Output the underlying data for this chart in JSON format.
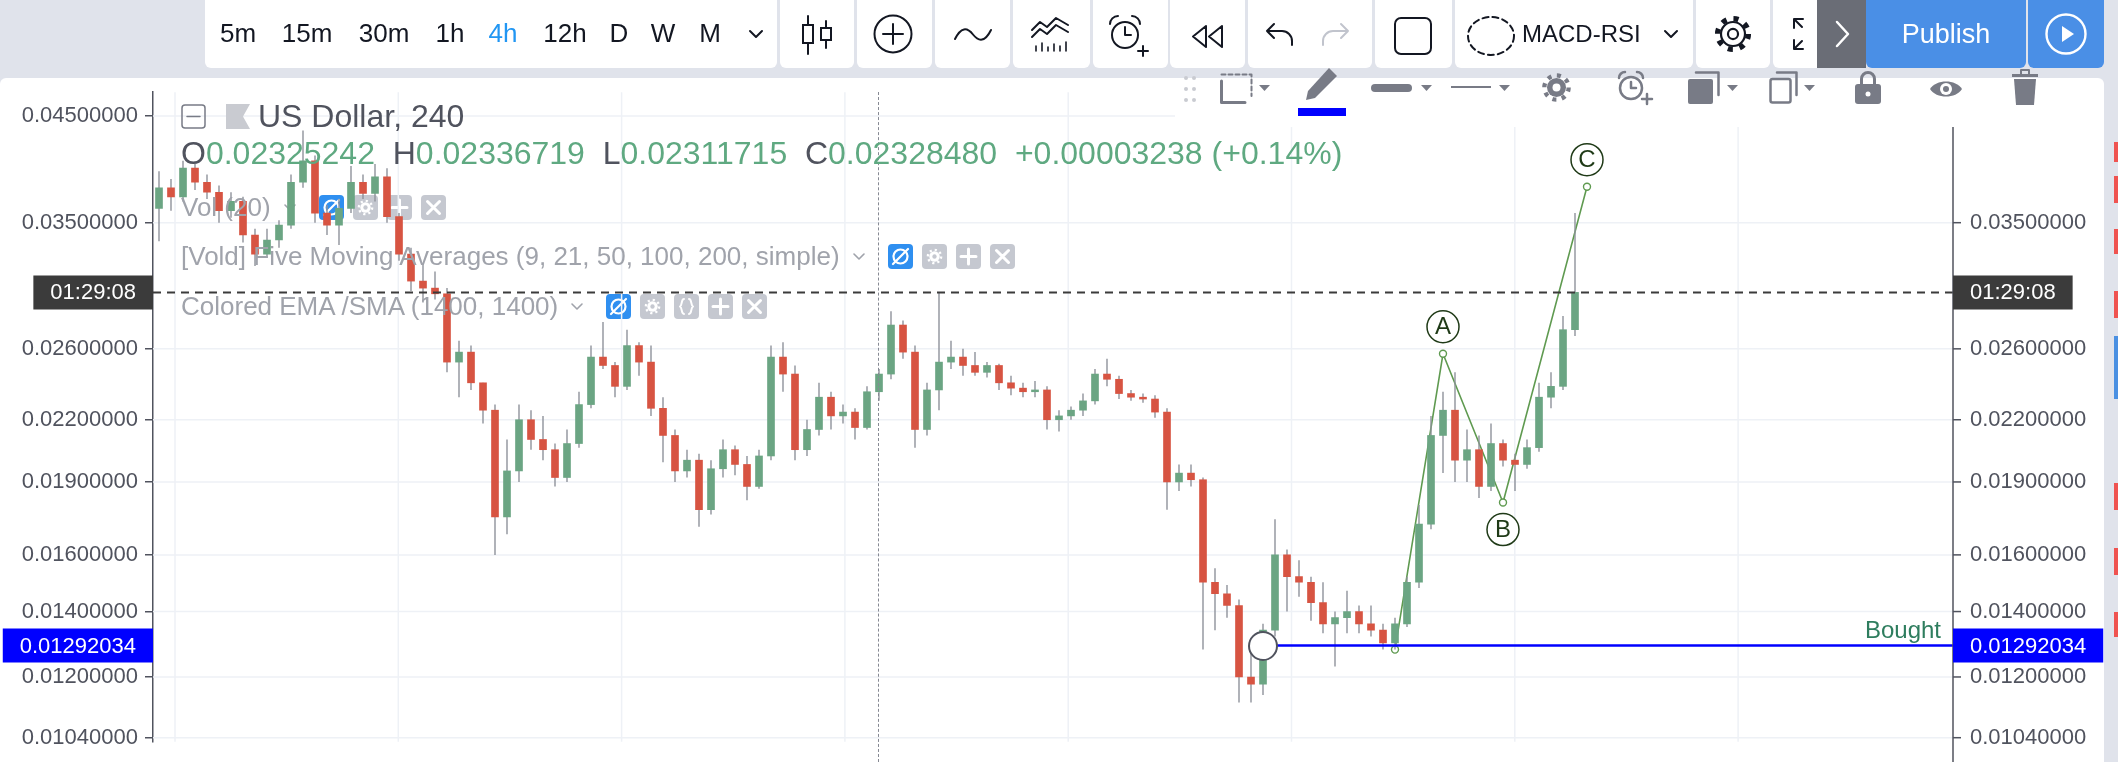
{
  "chart_data": {
    "type": "candlestick",
    "title": "US Dollar, 240",
    "subtitle": "O0.02325242  H0.02336719  L0.02311715  C0.02328480  +0.00003238 (+0.14%)",
    "categories": [
      null,
      null,
      null,
      null,
      null,
      null,
      null,
      null,
      null,
      null,
      null,
      null,
      null,
      null,
      null,
      null,
      null,
      null,
      null,
      null,
      null,
      null,
      null,
      null,
      null,
      null,
      null,
      null,
      null,
      null,
      null,
      null,
      null,
      null,
      null,
      null,
      null,
      null,
      null,
      null,
      null,
      null,
      null,
      null,
      null,
      null,
      null,
      null,
      null,
      null,
      null,
      null,
      null,
      null,
      null,
      null,
      null,
      null,
      null,
      null,
      null,
      null,
      null,
      null,
      null,
      null,
      null,
      null,
      null,
      null,
      null,
      null,
      null,
      null,
      null,
      null,
      null,
      null,
      null,
      null,
      null,
      null,
      null,
      null,
      null,
      null,
      null,
      null,
      null,
      null,
      null,
      null,
      null,
      null,
      null,
      null,
      null,
      null,
      null,
      null,
      null,
      null,
      null,
      null,
      null,
      null,
      null,
      null,
      null,
      null,
      null,
      null,
      null,
      null,
      null,
      null,
      null,
      null,
      null,
      null,
      null,
      null,
      null,
      null,
      null,
      null,
      null,
      null,
      null,
      null,
      null,
      null,
      null,
      null,
      null,
      null,
      null,
      null,
      null,
      null,
      null,
      null,
      null,
      null,
      null,
      null,
      null,
      null,
      null,
      null
    ],
    "ohlc": [
      [
        0.0362,
        0.0395,
        0.0335,
        0.038
      ],
      [
        0.038,
        0.0388,
        0.036,
        0.0372
      ],
      [
        0.0372,
        0.0405,
        0.0368,
        0.0398
      ],
      [
        0.0398,
        0.0402,
        0.0378,
        0.0385
      ],
      [
        0.0385,
        0.0392,
        0.037,
        0.0376
      ],
      [
        0.0376,
        0.0382,
        0.035,
        0.036
      ],
      [
        0.036,
        0.0376,
        0.0354,
        0.0368
      ],
      [
        0.0368,
        0.0372,
        0.0334,
        0.034
      ],
      [
        0.034,
        0.0345,
        0.0316,
        0.0325
      ],
      [
        0.0325,
        0.0345,
        0.0322,
        0.0336
      ],
      [
        0.0336,
        0.0352,
        0.033,
        0.0348
      ],
      [
        0.0348,
        0.0392,
        0.0345,
        0.0385
      ],
      [
        0.0385,
        0.0435,
        0.038,
        0.0405
      ],
      [
        0.0405,
        0.041,
        0.035,
        0.0358
      ],
      [
        0.0358,
        0.0365,
        0.034,
        0.0348
      ],
      [
        0.0348,
        0.037,
        0.0332,
        0.0362
      ],
      [
        0.0362,
        0.04,
        0.0358,
        0.0385
      ],
      [
        0.0385,
        0.0392,
        0.037,
        0.0375
      ],
      [
        0.0375,
        0.0402,
        0.0368,
        0.039
      ],
      [
        0.039,
        0.0398,
        0.035,
        0.0355
      ],
      [
        0.0355,
        0.0358,
        0.032,
        0.0325
      ],
      [
        0.0325,
        0.033,
        0.0298,
        0.0305
      ],
      [
        0.0305,
        0.0318,
        0.029,
        0.03
      ],
      [
        0.03,
        0.0312,
        0.0292,
        0.0296
      ],
      [
        0.0296,
        0.03,
        0.0246,
        0.0252
      ],
      [
        0.0252,
        0.0265,
        0.0232,
        0.0258
      ],
      [
        0.0258,
        0.0262,
        0.0236,
        0.024
      ],
      [
        0.024,
        0.024,
        0.0218,
        0.0225
      ],
      [
        0.0225,
        0.0228,
        0.016,
        0.0175
      ],
      [
        0.0175,
        0.021,
        0.0168,
        0.0195
      ],
      [
        0.0195,
        0.0228,
        0.019,
        0.022
      ],
      [
        0.022,
        0.0225,
        0.0205,
        0.021
      ],
      [
        0.021,
        0.0222,
        0.02,
        0.0205
      ],
      [
        0.0205,
        0.0208,
        0.0188,
        0.0192
      ],
      [
        0.0192,
        0.0215,
        0.019,
        0.0208
      ],
      [
        0.0208,
        0.0235,
        0.0206,
        0.0228
      ],
      [
        0.0228,
        0.0262,
        0.0226,
        0.0255
      ],
      [
        0.0255,
        0.0277,
        0.0248,
        0.025
      ],
      [
        0.025,
        0.0252,
        0.0232,
        0.0238
      ],
      [
        0.0238,
        0.0272,
        0.0236,
        0.0262
      ],
      [
        0.0262,
        0.0264,
        0.0244,
        0.0252
      ],
      [
        0.0252,
        0.0262,
        0.0222,
        0.0226
      ],
      [
        0.0226,
        0.0232,
        0.0199,
        0.0212
      ],
      [
        0.0212,
        0.0215,
        0.019,
        0.0195
      ],
      [
        0.0195,
        0.0205,
        0.0192,
        0.02
      ],
      [
        0.02,
        0.0203,
        0.0171,
        0.0178
      ],
      [
        0.0178,
        0.02,
        0.0176,
        0.0196
      ],
      [
        0.0196,
        0.021,
        0.0192,
        0.0205
      ],
      [
        0.0205,
        0.0207,
        0.0193,
        0.0198
      ],
      [
        0.0198,
        0.0202,
        0.0182,
        0.0188
      ],
      [
        0.0188,
        0.0205,
        0.0187,
        0.0202
      ],
      [
        0.0202,
        0.0262,
        0.02,
        0.0255
      ],
      [
        0.0255,
        0.0264,
        0.0235,
        0.0245
      ],
      [
        0.0245,
        0.025,
        0.02,
        0.0205
      ],
      [
        0.0205,
        0.022,
        0.0202,
        0.0215
      ],
      [
        0.0215,
        0.024,
        0.0212,
        0.0232
      ],
      [
        0.0232,
        0.0235,
        0.0215,
        0.0222
      ],
      [
        0.0222,
        0.0228,
        0.0218,
        0.0224
      ],
      [
        0.0224,
        0.0226,
        0.021,
        0.0216
      ],
      [
        0.0216,
        0.0238,
        0.0215,
        0.0235
      ],
      [
        0.0235,
        0.0248,
        0.023,
        0.0245
      ],
      [
        0.0245,
        0.0284,
        0.0242,
        0.0275
      ],
      [
        0.0275,
        0.0278,
        0.0254,
        0.0258
      ],
      [
        0.0258,
        0.0262,
        0.0206,
        0.0215
      ],
      [
        0.0215,
        0.024,
        0.0212,
        0.0236
      ],
      [
        0.0236,
        0.0297,
        0.0225,
        0.0252
      ],
      [
        0.0252,
        0.0265,
        0.0248,
        0.0255
      ],
      [
        0.0255,
        0.026,
        0.0244,
        0.025
      ],
      [
        0.025,
        0.0258,
        0.0244,
        0.0246
      ],
      [
        0.0246,
        0.0252,
        0.0243,
        0.025
      ],
      [
        0.025,
        0.0251,
        0.0236,
        0.024
      ],
      [
        0.024,
        0.0244,
        0.0233,
        0.0237
      ],
      [
        0.0237,
        0.024,
        0.0232,
        0.0235
      ],
      [
        0.0235,
        0.0241,
        0.0232,
        0.0236
      ],
      [
        0.0236,
        0.0238,
        0.0215,
        0.022
      ],
      [
        0.022,
        0.0225,
        0.0214,
        0.0222
      ],
      [
        0.0222,
        0.0227,
        0.022,
        0.0225
      ],
      [
        0.0225,
        0.0234,
        0.0222,
        0.023
      ],
      [
        0.023,
        0.0248,
        0.0228,
        0.0245
      ],
      [
        0.0245,
        0.0254,
        0.0238,
        0.0242
      ],
      [
        0.0242,
        0.0244,
        0.0231,
        0.0234
      ],
      [
        0.0234,
        0.0236,
        0.023,
        0.0232
      ],
      [
        0.0232,
        0.0234,
        0.0229,
        0.0231
      ],
      [
        0.0231,
        0.0233,
        0.0221,
        0.0224
      ],
      [
        0.0224,
        0.0226,
        0.0178,
        0.019
      ],
      [
        0.019,
        0.0198,
        0.0186,
        0.0194
      ],
      [
        0.0194,
        0.0198,
        0.0188,
        0.0191
      ],
      [
        0.0191,
        0.0192,
        0.0128,
        0.015
      ],
      [
        0.015,
        0.0155,
        0.0134,
        0.0146
      ],
      [
        0.0146,
        0.0149,
        0.0138,
        0.0142
      ],
      [
        0.0142,
        0.0144,
        0.0113,
        0.012
      ],
      [
        0.012,
        0.0127,
        0.0113,
        0.0118
      ],
      [
        0.0118,
        0.0136,
        0.0115,
        0.0134
      ],
      [
        0.0134,
        0.0174,
        0.0132,
        0.016
      ],
      [
        0.016,
        0.0162,
        0.014,
        0.0152
      ],
      [
        0.0152,
        0.0158,
        0.0145,
        0.015
      ],
      [
        0.015,
        0.0152,
        0.0137,
        0.0143
      ],
      [
        0.0143,
        0.015,
        0.0133,
        0.0136
      ],
      [
        0.0136,
        0.014,
        0.0123,
        0.0138
      ],
      [
        0.0138,
        0.0147,
        0.0133,
        0.014
      ],
      [
        0.014,
        0.0142,
        0.0133,
        0.0136
      ],
      [
        0.0136,
        0.0142,
        0.0132,
        0.0134
      ],
      [
        0.0134,
        0.0136,
        0.0128,
        0.013
      ],
      [
        0.013,
        0.0138,
        0.0128,
        0.0136
      ],
      [
        0.0136,
        0.0152,
        0.0135,
        0.015
      ],
      [
        0.015,
        0.018,
        0.0148,
        0.0172
      ],
      [
        0.0172,
        0.0222,
        0.017,
        0.0212
      ],
      [
        0.0212,
        0.0235,
        0.0194,
        0.0225
      ],
      [
        0.0225,
        0.0246,
        0.019,
        0.02
      ],
      [
        0.02,
        0.0215,
        0.019,
        0.0205
      ],
      [
        0.0205,
        0.0212,
        0.0183,
        0.0188
      ],
      [
        0.0188,
        0.0218,
        0.0186,
        0.0208
      ],
      [
        0.0208,
        0.021,
        0.0197,
        0.02
      ],
      [
        0.02,
        0.0203,
        0.0186,
        0.0198
      ],
      [
        0.0198,
        0.021,
        0.0196,
        0.0206
      ],
      [
        0.0206,
        0.024,
        0.0204,
        0.0232
      ],
      [
        0.0232,
        0.0246,
        0.0226,
        0.0238
      ],
      [
        0.0238,
        0.0281,
        0.0236,
        0.0272
      ],
      [
        0.0272,
        0.0358,
        0.0268,
        0.0297
      ],
      null,
      null,
      null,
      null,
      null,
      null,
      null,
      null,
      null,
      null,
      null,
      null,
      null,
      null,
      null,
      null,
      null,
      null,
      null,
      null,
      null,
      null,
      null,
      null,
      null,
      null,
      null,
      null,
      null,
      null,
      null
    ],
    "colors": [
      "#6ba583",
      "#d75442",
      "#6ba583",
      "#d75442",
      "#d75442",
      "#d75442",
      "#6ba583",
      "#d75442",
      "#d75442",
      "#6ba583",
      "#6ba583",
      "#6ba583",
      "#6ba583",
      "#d75442",
      "#d75442",
      "#6ba583",
      "#6ba583",
      "#d75442",
      "#6ba583",
      "#d75442",
      "#d75442",
      "#d75442",
      "#d75442",
      "#d75442",
      "#d75442",
      "#6ba583",
      "#d75442",
      "#d75442",
      "#d75442",
      "#6ba583",
      "#6ba583",
      "#d75442",
      "#d75442",
      "#d75442",
      "#6ba583",
      "#6ba583",
      "#6ba583",
      "#d75442",
      "#d75442",
      "#6ba583",
      "#d75442",
      "#d75442",
      "#d75442",
      "#d75442",
      "#6ba583",
      "#d75442",
      "#6ba583",
      "#6ba583",
      "#d75442",
      "#d75442",
      "#6ba583",
      "#6ba583",
      "#d75442",
      "#d75442",
      "#6ba583",
      "#6ba583",
      "#d75442",
      "#6ba583",
      "#d75442",
      "#6ba583",
      "#6ba583",
      "#6ba583",
      "#d75442",
      "#d75442",
      "#6ba583",
      "#6ba583",
      "#6ba583",
      "#d75442",
      "#d75442",
      "#6ba583",
      "#d75442",
      "#d75442",
      "#d75442",
      "#6ba583",
      "#d75442",
      "#6ba583",
      "#6ba583",
      "#6ba583",
      "#6ba583",
      "#d75442",
      "#d75442",
      "#d75442",
      "#d75442",
      "#d75442",
      "#d75442",
      "#6ba583",
      "#d75442",
      "#d75442",
      "#d75442",
      "#d75442",
      "#d75442",
      "#d75442",
      "#6ba583",
      "#6ba583",
      "#d75442",
      "#d75442",
      "#d75442",
      "#d75442",
      "#6ba583",
      "#6ba583",
      "#d75442",
      "#d75442",
      "#d75442",
      "#6ba583",
      "#6ba583",
      "#6ba583",
      "#6ba583",
      "#6ba583",
      "#d75442",
      "#6ba583",
      "#d75442",
      "#6ba583",
      "#d75442",
      "#d75442",
      "#6ba583",
      "#6ba583",
      "#6ba583",
      "#6ba583",
      "#6ba583",
      null,
      null,
      null,
      null,
      null,
      null,
      null,
      null,
      null,
      null,
      null,
      null,
      null,
      null,
      null,
      null,
      null,
      null,
      null,
      null,
      null,
      null,
      null,
      null,
      null,
      null,
      null,
      null,
      null,
      null,
      null
    ],
    "series": [
      {
        "type": "line",
        "color": "#5f9a50",
        "values": [
          null,
          null,
          null,
          null,
          null,
          null,
          null,
          null,
          null,
          null,
          null,
          null,
          null,
          null,
          null,
          null,
          null,
          null,
          null,
          null,
          null,
          null,
          null,
          null,
          null,
          null,
          null,
          null,
          null,
          null,
          null,
          null,
          null,
          null,
          null,
          null,
          null,
          null,
          null,
          null,
          null,
          null,
          null,
          null,
          null,
          null,
          null,
          null,
          null,
          null,
          null,
          null,
          null,
          null,
          null,
          null,
          null,
          null,
          null,
          null,
          null,
          null,
          null,
          null,
          null,
          null,
          null,
          null,
          null,
          null,
          null,
          null,
          null,
          null,
          null,
          null,
          null,
          null,
          null,
          null,
          null,
          null,
          null,
          null,
          null,
          null,
          null,
          null,
          null,
          null,
          null,
          null,
          null,
          null,
          null,
          null,
          null,
          null,
          null,
          null,
          null,
          null,
          null,
          0.0128,
          null,
          null,
          null,
          0.0257,
          null,
          null,
          null,
          null,
          0.0181,
          null,
          null,
          null,
          null,
          null,
          null,
          0.0381,
          null,
          null,
          null,
          null,
          null,
          null,
          null,
          null,
          null,
          null,
          null,
          null,
          null,
          null,
          null,
          null,
          null,
          null,
          null,
          null,
          null,
          null,
          null,
          null,
          null,
          null,
          null,
          null,
          null,
          null
        ],
        "value_labels": [
          null,
          null,
          null,
          null,
          null,
          null,
          null,
          null,
          null,
          null,
          null,
          null,
          null,
          null,
          null,
          null,
          null,
          null,
          null,
          null,
          null,
          null,
          null,
          null,
          null,
          null,
          null,
          null,
          null,
          null,
          null,
          null,
          null,
          null,
          null,
          null,
          null,
          null,
          null,
          null,
          null,
          null,
          null,
          null,
          null,
          null,
          null,
          null,
          null,
          null,
          null,
          null,
          null,
          null,
          null,
          null,
          null,
          null,
          null,
          null,
          null,
          null,
          null,
          null,
          null,
          null,
          null,
          null,
          null,
          null,
          null,
          null,
          null,
          null,
          null,
          null,
          null,
          null,
          null,
          null,
          null,
          null,
          null,
          null,
          null,
          null,
          null,
          null,
          null,
          null,
          null,
          null,
          null,
          null,
          null,
          null,
          null,
          null,
          null,
          null,
          null,
          null,
          null,
          null,
          null,
          null,
          null,
          "A",
          null,
          null,
          null,
          null,
          "B",
          null,
          null,
          null,
          null,
          null,
          null,
          "C",
          null,
          null,
          null,
          null,
          null,
          null,
          null,
          null,
          null,
          null,
          null,
          null,
          null,
          null,
          null,
          null,
          null,
          null,
          null,
          null,
          null,
          null,
          null,
          null,
          null,
          null,
          null,
          null,
          null,
          null
        ]
      }
    ],
    "marker": "circle",
    "log": "y",
    "grid": true,
    "tick_labels": "y",
    "ylim": [
      0.0103,
      0.0476
    ],
    "yticks": [
      {
        "value": 0.0104,
        "label": "0.01040000"
      },
      {
        "value": 0.012,
        "label": "0.01200000"
      },
      {
        "value": 0.014,
        "label": "0.01400000"
      },
      {
        "value": 0.016,
        "label": "0.01600000"
      },
      {
        "value": 0.019,
        "label": "0.01900000"
      },
      {
        "value": 0.022,
        "label": "0.02200000"
      },
      {
        "value": 0.026,
        "label": "0.02600000"
      },
      {
        "value": 0.035,
        "label": "0.03500000"
      },
      {
        "value": 0.045,
        "label": "0.04500000"
      }
    ],
    "ref_lines": [
      {
        "axis": "y",
        "value": 0.01292034,
        "label": "Bought",
        "color": "#0000ff"
      },
      {
        "axis": "y",
        "value": 0.0297,
        "color": "#3b3b3b",
        "line_style": "dashed"
      }
    ],
    "annotations": [
      "5m",
      "15m",
      "30m",
      "1h",
      "4h",
      "12h",
      "D",
      "W",
      "M",
      "MACD-RSI",
      "Publish",
      "Vol (20)",
      "[Vold] Five Moving Averages (9, 21, 50, 100, 200, simple)",
      "Colored EMA /SMA (1400, 1400)",
      "0.01292034",
      "01:29:08"
    ]
  }
}
